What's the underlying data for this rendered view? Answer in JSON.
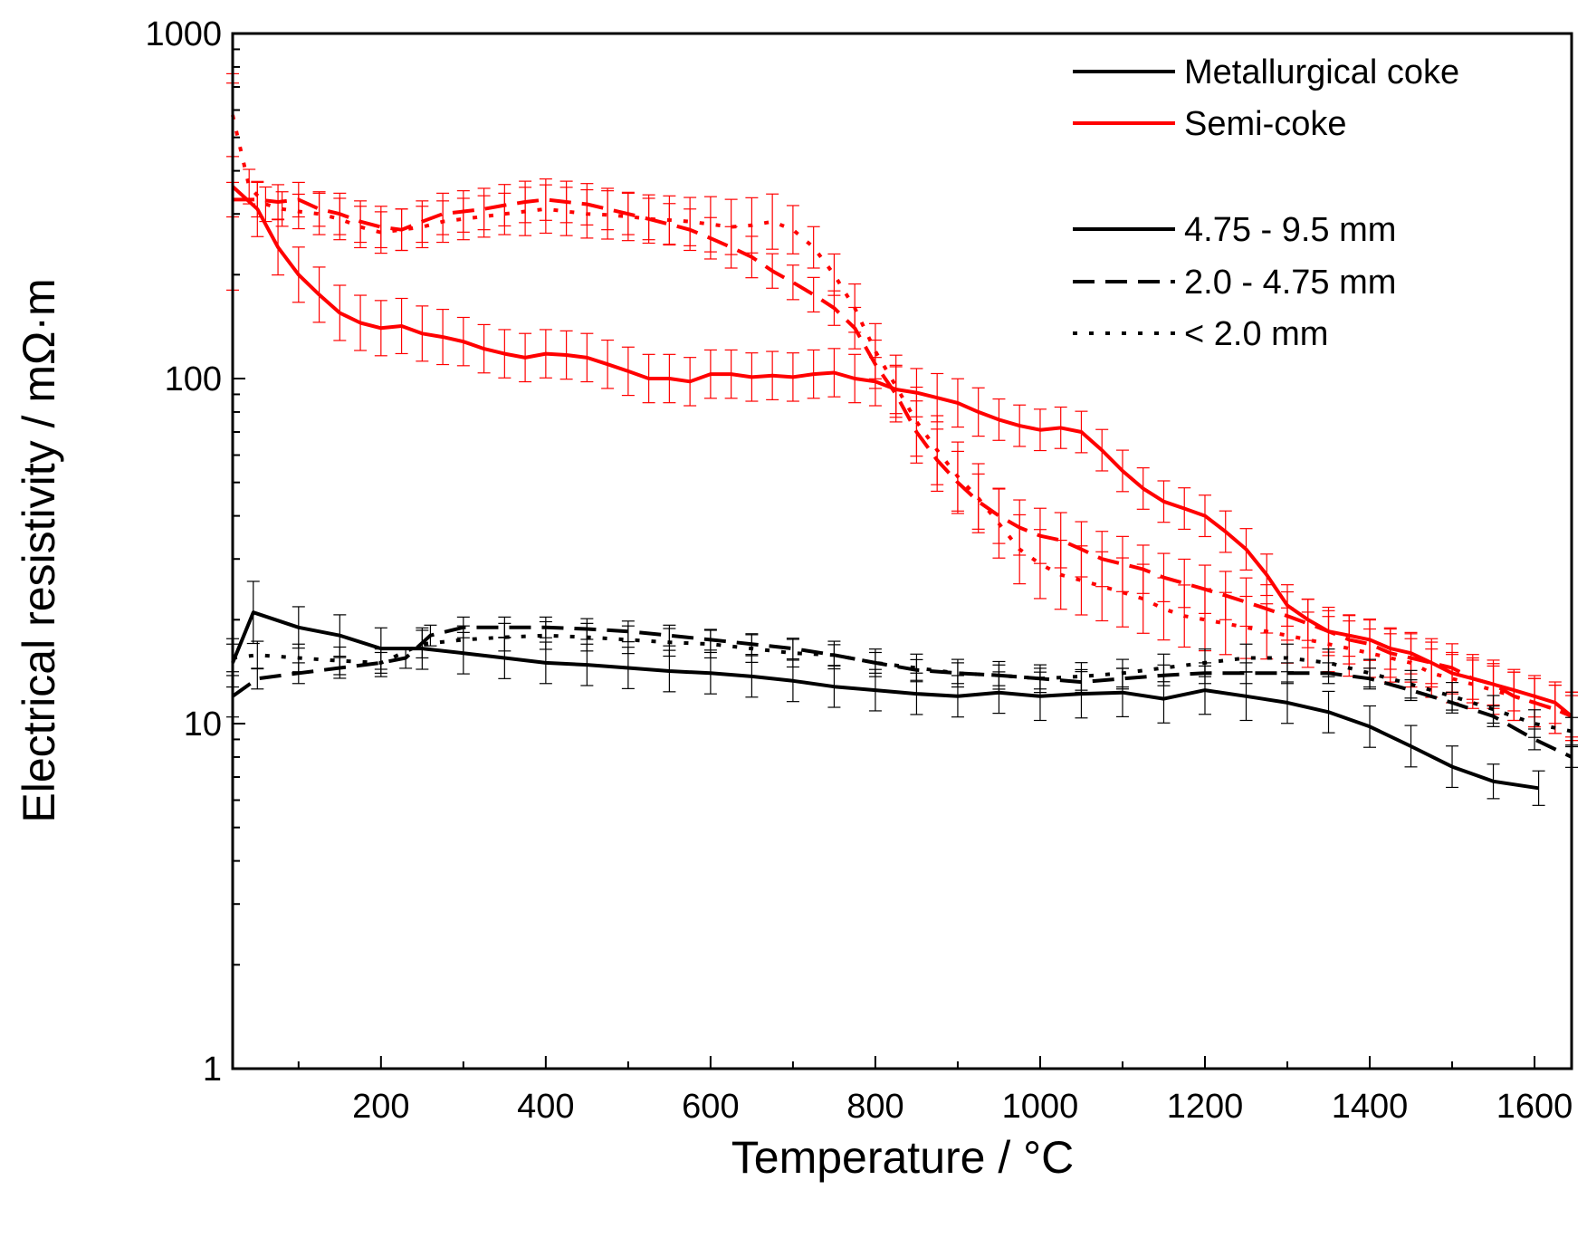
{
  "chart_data": {
    "type": "line",
    "y_scale": "log",
    "xlabel": "Temperature / °C",
    "ylabel": "Electrical resistivity / mΩ·m",
    "xlim": [
      20,
      1645
    ],
    "ylim": [
      1,
      1000
    ],
    "x_ticks": [
      200,
      400,
      600,
      800,
      1000,
      1200,
      1400,
      1600
    ],
    "y_ticks": [
      1,
      10,
      100,
      1000
    ],
    "grid": false,
    "legend_position": "top-right",
    "legend": {
      "materials": [
        {
          "label": "Metallurgical coke",
          "color": "#000000"
        },
        {
          "label": "Semi-coke",
          "color": "#ff0000"
        }
      ],
      "sizes": [
        {
          "label": "4.75 - 9.5 mm",
          "dash": "solid"
        },
        {
          "label": "2.0 - 4.75 mm",
          "dash": "dashed"
        },
        {
          "label": "< 2.0 mm",
          "dash": "dotted"
        }
      ]
    },
    "series": [
      {
        "name": "Semi-coke 4.75 - 9.5 mm",
        "material": "Semi-coke",
        "size": "4.75 - 9.5 mm",
        "color": "#ff0000",
        "dash": "solid",
        "x": [
          20,
          50,
          75,
          100,
          125,
          150,
          175,
          200,
          225,
          250,
          275,
          300,
          325,
          350,
          375,
          400,
          425,
          450,
          475,
          500,
          525,
          550,
          575,
          600,
          625,
          650,
          675,
          700,
          725,
          750,
          775,
          800,
          825,
          850,
          875,
          900,
          925,
          950,
          975,
          1000,
          1025,
          1050,
          1075,
          1100,
          1125,
          1150,
          1175,
          1200,
          1225,
          1250,
          1275,
          1300,
          1325,
          1350,
          1375,
          1400,
          1425,
          1450,
          1475,
          1500,
          1525,
          1550,
          1575,
          1600,
          1625,
          1645
        ],
        "y": [
          360,
          310,
          240,
          200,
          175,
          155,
          145,
          140,
          142,
          135,
          132,
          128,
          122,
          118,
          115,
          118,
          117,
          115,
          110,
          105,
          100,
          100,
          98,
          103,
          103,
          101,
          102,
          101,
          103,
          104,
          100,
          98,
          93,
          91,
          88,
          85,
          80,
          76,
          73,
          71,
          72,
          70,
          62,
          54,
          48,
          44,
          42,
          40,
          36,
          32,
          27,
          22,
          20,
          18.5,
          18,
          17.5,
          16.5,
          16,
          15,
          14,
          13.5,
          13,
          12.5,
          12,
          11.5,
          10.5
        ],
        "err": [
          0.3,
          0.08,
          0.08,
          0.08,
          0.08,
          0.08,
          0.08,
          0.08,
          0.08,
          0.08,
          0.08,
          0.07,
          0.07,
          0.07,
          0.07,
          0.07,
          0.07,
          0.07,
          0.07,
          0.07,
          0.07,
          0.07,
          0.07,
          0.07,
          0.07,
          0.07,
          0.07,
          0.07,
          0.07,
          0.07,
          0.07,
          0.07,
          0.07,
          0.07,
          0.07,
          0.07,
          0.07,
          0.06,
          0.06,
          0.06,
          0.06,
          0.06,
          0.06,
          0.06,
          0.06,
          0.06,
          0.06,
          0.06,
          0.06,
          0.06,
          0.06,
          0.06,
          0.06,
          0.06,
          0.06,
          0.06,
          0.06,
          0.06,
          0.06,
          0.06,
          0.06,
          0.06,
          0.06,
          0.06,
          0.06,
          0.06
        ]
      },
      {
        "name": "Semi-coke 2.0 - 4.75 mm",
        "material": "Semi-coke",
        "size": "2.0 - 4.75 mm",
        "color": "#ff0000",
        "dash": "dashed",
        "x": [
          20,
          50,
          75,
          100,
          125,
          150,
          175,
          200,
          225,
          250,
          275,
          300,
          325,
          350,
          375,
          400,
          425,
          450,
          475,
          500,
          525,
          550,
          575,
          600,
          625,
          650,
          675,
          700,
          725,
          750,
          775,
          800,
          825,
          850,
          875,
          900,
          925,
          950,
          975,
          1000,
          1025,
          1050,
          1075,
          1100,
          1125,
          1150,
          1175,
          1200,
          1225,
          1250,
          1275,
          1300,
          1325,
          1350,
          1375,
          1400,
          1425,
          1450,
          1475,
          1500,
          1525,
          1550,
          1575,
          1600,
          1625,
          1645
        ],
        "y": [
          330,
          330,
          325,
          330,
          310,
          300,
          285,
          275,
          270,
          285,
          300,
          305,
          310,
          318,
          325,
          330,
          325,
          320,
          310,
          300,
          290,
          280,
          270,
          255,
          240,
          225,
          205,
          190,
          175,
          160,
          140,
          110,
          90,
          70,
          58,
          50,
          44,
          40,
          37,
          35,
          34,
          32,
          30,
          29,
          28,
          26.5,
          25.5,
          24.5,
          23.5,
          22.5,
          21.5,
          20.5,
          19.5,
          18.5,
          17.5,
          17,
          16,
          15.5,
          15,
          14.5,
          13.5,
          13,
          12,
          11.5,
          11,
          10.5
        ],
        "err": [
          0.05,
          0.05,
          0.05,
          0.05,
          0.05,
          0.06,
          0.06,
          0.06,
          0.06,
          0.06,
          0.06,
          0.06,
          0.06,
          0.06,
          0.06,
          0.06,
          0.06,
          0.06,
          0.06,
          0.06,
          0.06,
          0.06,
          0.06,
          0.06,
          0.06,
          0.06,
          0.05,
          0.05,
          0.05,
          0.05,
          0.06,
          0.07,
          0.08,
          0.09,
          0.09,
          0.09,
          0.08,
          0.08,
          0.08,
          0.08,
          0.08,
          0.08,
          0.08,
          0.08,
          0.07,
          0.07,
          0.07,
          0.07,
          0.07,
          0.07,
          0.07,
          0.07,
          0.07,
          0.07,
          0.07,
          0.07,
          0.07,
          0.07,
          0.07,
          0.07,
          0.07,
          0.07,
          0.07,
          0.07,
          0.07,
          0.07
        ]
      },
      {
        "name": "Semi-coke < 2.0 mm",
        "material": "Semi-coke",
        "size": "< 2.0 mm",
        "color": "#ff0000",
        "dash": "dotted",
        "x": [
          20,
          40,
          60,
          80,
          100,
          125,
          150,
          175,
          200,
          225,
          250,
          275,
          300,
          325,
          350,
          375,
          400,
          425,
          450,
          475,
          500,
          525,
          550,
          575,
          600,
          625,
          650,
          675,
          700,
          725,
          750,
          775,
          800,
          825,
          850,
          875,
          900,
          925,
          950,
          975,
          1000,
          1025,
          1050,
          1075,
          1100,
          1125,
          1150,
          1175,
          1200,
          1225,
          1250,
          1275,
          1300,
          1325,
          1350,
          1375,
          1400,
          1425,
          1450,
          1475,
          1500,
          1525,
          1550,
          1575,
          1600,
          1625,
          1645
        ],
        "y": [
          580,
          360,
          320,
          310,
          305,
          300,
          290,
          275,
          265,
          270,
          275,
          285,
          290,
          295,
          300,
          305,
          310,
          305,
          300,
          298,
          295,
          290,
          288,
          285,
          280,
          275,
          278,
          285,
          270,
          240,
          200,
          160,
          120,
          95,
          75,
          62,
          52,
          45,
          38,
          32,
          29,
          27,
          26,
          25,
          24,
          23,
          21.5,
          20.5,
          20,
          19.5,
          19,
          18.5,
          18,
          17.5,
          17,
          16.5,
          16,
          15.5,
          15,
          14,
          13.5,
          13,
          12.5,
          12,
          11.5,
          11,
          10.5
        ],
        "err": [
          0.12,
          0.05,
          0.05,
          0.05,
          0.05,
          0.06,
          0.06,
          0.06,
          0.06,
          0.06,
          0.06,
          0.06,
          0.06,
          0.06,
          0.06,
          0.07,
          0.07,
          0.07,
          0.07,
          0.07,
          0.07,
          0.07,
          0.07,
          0.07,
          0.08,
          0.08,
          0.08,
          0.08,
          0.07,
          0.06,
          0.06,
          0.07,
          0.08,
          0.09,
          0.1,
          0.1,
          0.1,
          0.1,
          0.1,
          0.1,
          0.1,
          0.1,
          0.1,
          0.1,
          0.1,
          0.1,
          0.09,
          0.09,
          0.09,
          0.09,
          0.09,
          0.08,
          0.08,
          0.08,
          0.08,
          0.08,
          0.07,
          0.07,
          0.07,
          0.07,
          0.07,
          0.07,
          0.07,
          0.07,
          0.07,
          0.07,
          0.07
        ]
      },
      {
        "name": "Metallurgical coke 4.75 - 9.5 mm",
        "material": "Metallurgical coke",
        "size": "4.75 - 9.5 mm",
        "color": "#000000",
        "dash": "solid",
        "x": [
          20,
          45,
          100,
          150,
          200,
          250,
          300,
          350,
          400,
          450,
          500,
          550,
          600,
          650,
          700,
          750,
          800,
          850,
          900,
          950,
          1000,
          1050,
          1100,
          1150,
          1200,
          1250,
          1300,
          1350,
          1400,
          1450,
          1500,
          1550,
          1605
        ],
        "y": [
          15,
          21,
          19,
          18,
          16.5,
          16.5,
          16,
          15.5,
          15,
          14.8,
          14.5,
          14.2,
          14,
          13.7,
          13.3,
          12.8,
          12.5,
          12.2,
          12,
          12.3,
          12,
          12.2,
          12.3,
          11.8,
          12.5,
          12,
          11.5,
          10.8,
          9.8,
          8.6,
          7.5,
          6.8,
          6.5
        ],
        "err": [
          0.07,
          0.09,
          0.06,
          0.06,
          0.06,
          0.06,
          0.06,
          0.06,
          0.06,
          0.06,
          0.06,
          0.06,
          0.06,
          0.06,
          0.06,
          0.06,
          0.06,
          0.06,
          0.06,
          0.06,
          0.07,
          0.07,
          0.07,
          0.07,
          0.07,
          0.07,
          0.06,
          0.06,
          0.06,
          0.06,
          0.06,
          0.05,
          0.05
        ]
      },
      {
        "name": "Metallurgical coke 2.0 - 4.75 mm",
        "material": "Metallurgical coke",
        "size": "2.0 - 4.75 mm",
        "color": "#000000",
        "dash": "dashed",
        "x": [
          20,
          50,
          100,
          150,
          200,
          230,
          260,
          300,
          350,
          400,
          450,
          500,
          550,
          600,
          650,
          700,
          750,
          800,
          850,
          900,
          950,
          1000,
          1050,
          1100,
          1150,
          1200,
          1250,
          1300,
          1350,
          1400,
          1450,
          1500,
          1550,
          1600,
          1645
        ],
        "y": [
          12,
          13.5,
          14,
          14.5,
          15,
          15.5,
          18,
          19,
          19,
          19,
          18.8,
          18.5,
          18,
          17.5,
          17,
          16.5,
          15.8,
          15,
          14.3,
          14,
          13.8,
          13.5,
          13.2,
          13.5,
          13.8,
          14,
          14,
          14,
          14,
          13.5,
          12.5,
          11.5,
          10.5,
          9,
          8
        ],
        "err": [
          0.06,
          0.03,
          0.03,
          0.03,
          0.03,
          0.03,
          0.03,
          0.03,
          0.03,
          0.03,
          0.03,
          0.03,
          0.03,
          0.03,
          0.03,
          0.03,
          0.03,
          0.03,
          0.03,
          0.03,
          0.03,
          0.03,
          0.03,
          0.03,
          0.03,
          0.03,
          0.03,
          0.03,
          0.03,
          0.03,
          0.03,
          0.03,
          0.03,
          0.03,
          0.03
        ]
      },
      {
        "name": "Metallurgical coke < 2.0 mm",
        "material": "Metallurgical coke",
        "size": "< 2.0 mm",
        "color": "#000000",
        "dash": "dotted",
        "x": [
          20,
          50,
          100,
          150,
          200,
          250,
          300,
          350,
          400,
          450,
          500,
          550,
          600,
          650,
          700,
          750,
          800,
          850,
          900,
          950,
          1000,
          1050,
          1100,
          1150,
          1200,
          1250,
          1300,
          1350,
          1400,
          1450,
          1500,
          1550,
          1600,
          1645
        ],
        "y": [
          15.5,
          15.8,
          15.5,
          15.2,
          15,
          17,
          17.5,
          17.8,
          18,
          17.8,
          17.5,
          17.2,
          17,
          16.5,
          16,
          15.8,
          15,
          14.5,
          14,
          13.8,
          13.5,
          13.7,
          14,
          14.5,
          15,
          15.5,
          15.5,
          15,
          14,
          13,
          12,
          11,
          10,
          9.5
        ],
        "err": [
          0.04,
          0.04,
          0.04,
          0.04,
          0.04,
          0.04,
          0.04,
          0.04,
          0.04,
          0.04,
          0.04,
          0.04,
          0.04,
          0.04,
          0.04,
          0.04,
          0.04,
          0.04,
          0.04,
          0.04,
          0.04,
          0.04,
          0.04,
          0.04,
          0.04,
          0.04,
          0.04,
          0.04,
          0.04,
          0.04,
          0.04,
          0.04,
          0.04,
          0.04
        ]
      }
    ]
  }
}
